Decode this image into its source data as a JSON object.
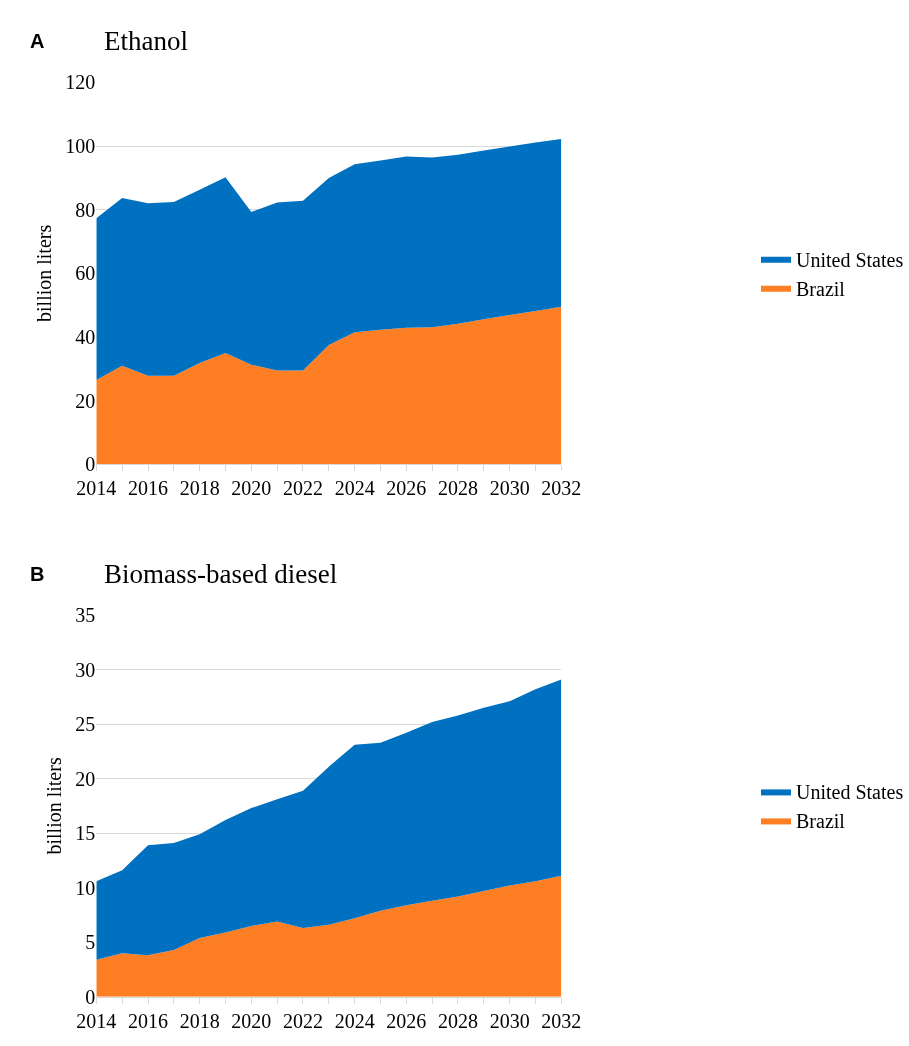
{
  "chart_data": [
    {
      "type": "area",
      "title": "Ethanol",
      "annotations": [
        "A"
      ],
      "ylabel": "billion liters",
      "stacked": true,
      "grid": "y",
      "legend": "right",
      "x": [
        2014,
        2015,
        2016,
        2017,
        2018,
        2019,
        2020,
        2021,
        2022,
        2023,
        2024,
        2025,
        2026,
        2027,
        2028,
        2029,
        2030,
        2031,
        2032
      ],
      "xlim": [
        2014,
        2032
      ],
      "xticks": [
        2014,
        2016,
        2018,
        2020,
        2022,
        2024,
        2026,
        2028,
        2030,
        2032
      ],
      "ylim": [
        0,
        120
      ],
      "yticks": [
        0,
        20,
        40,
        60,
        80,
        100,
        120
      ],
      "series": [
        {
          "name": "Brazil",
          "color": "#fd7e23",
          "values": [
            26.5,
            31.0,
            27.8,
            27.8,
            31.8,
            35.0,
            31.3,
            29.5,
            29.5,
            37.5,
            41.5,
            42.3,
            42.9,
            43.1,
            44.2,
            45.6,
            46.9,
            48.2,
            49.5
          ]
        },
        {
          "name": "United States",
          "color": "#0070c0",
          "values": [
            50.8,
            52.7,
            54.2,
            54.6,
            54.5,
            55.2,
            48.0,
            52.8,
            53.3,
            52.5,
            52.8,
            53.2,
            53.8,
            53.3,
            53.1,
            53.0,
            53.0,
            52.9,
            52.7
          ]
        }
      ]
    },
    {
      "type": "area",
      "title": "Biomass-based diesel",
      "annotations": [
        "B"
      ],
      "ylabel": "billion liters",
      "stacked": true,
      "grid": "y",
      "legend": "right",
      "x": [
        2014,
        2015,
        2016,
        2017,
        2018,
        2019,
        2020,
        2021,
        2022,
        2023,
        2024,
        2025,
        2026,
        2027,
        2028,
        2029,
        2030,
        2031,
        2032
      ],
      "xlim": [
        2014,
        2032
      ],
      "xticks": [
        2014,
        2016,
        2018,
        2020,
        2022,
        2024,
        2026,
        2028,
        2030,
        2032
      ],
      "ylim": [
        0,
        35
      ],
      "yticks": [
        0,
        5,
        10,
        15,
        20,
        25,
        30,
        35
      ],
      "series": [
        {
          "name": "Brazil",
          "color": "#fd7e23",
          "values": [
            3.4,
            4.0,
            3.8,
            4.3,
            5.4,
            5.9,
            6.5,
            6.9,
            6.3,
            6.6,
            7.2,
            7.9,
            8.4,
            8.8,
            9.2,
            9.7,
            10.2,
            10.6,
            11.1
          ]
        },
        {
          "name": "United States",
          "color": "#0070c0",
          "values": [
            7.2,
            7.6,
            10.1,
            9.8,
            9.5,
            10.3,
            10.8,
            11.2,
            12.6,
            14.5,
            15.9,
            15.4,
            15.8,
            16.4,
            16.6,
            16.8,
            16.9,
            17.6,
            18.0
          ]
        }
      ]
    }
  ]
}
